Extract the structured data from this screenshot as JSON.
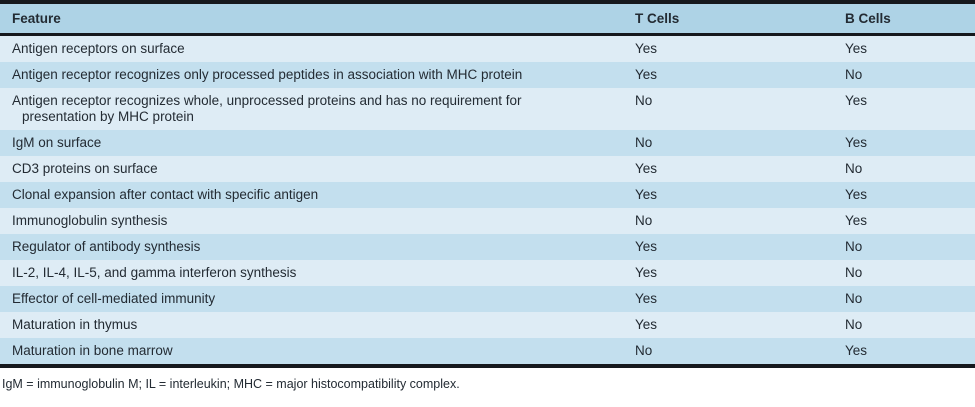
{
  "table": {
    "columns": {
      "feature": "Feature",
      "t_cells": "T Cells",
      "b_cells": "B Cells"
    },
    "rows": [
      {
        "feature": "Antigen receptors on surface",
        "t_cells": "Yes",
        "b_cells": "Yes"
      },
      {
        "feature": "Antigen receptor recognizes only processed peptides in association with MHC protein",
        "t_cells": "Yes",
        "b_cells": "No"
      },
      {
        "feature": "Antigen receptor recognizes whole, unprocessed proteins and has no requirement for presentation by MHC protein",
        "t_cells": "No",
        "b_cells": "Yes"
      },
      {
        "feature": "IgM on surface",
        "t_cells": "No",
        "b_cells": "Yes"
      },
      {
        "feature": "CD3 proteins on surface",
        "t_cells": "Yes",
        "b_cells": "No"
      },
      {
        "feature": "Clonal expansion after contact with specific antigen",
        "t_cells": "Yes",
        "b_cells": "Yes"
      },
      {
        "feature": "Immunoglobulin synthesis",
        "t_cells": "No",
        "b_cells": "Yes"
      },
      {
        "feature": "Regulator of antibody synthesis",
        "t_cells": "Yes",
        "b_cells": "No"
      },
      {
        "feature": "IL-2, IL-4, IL-5, and gamma interferon synthesis",
        "t_cells": "Yes",
        "b_cells": "No"
      },
      {
        "feature": "Effector of cell-mediated immunity",
        "t_cells": "Yes",
        "b_cells": "No"
      },
      {
        "feature": "Maturation in thymus",
        "t_cells": "Yes",
        "b_cells": "No"
      },
      {
        "feature": "Maturation in bone marrow",
        "t_cells": "No",
        "b_cells": "Yes"
      }
    ],
    "footnote": "IgM = immunoglobulin M; IL = interleukin; MHC = major histocompatibility complex."
  },
  "colors": {
    "header_bg": "#aed3e6",
    "row_light": "#deecf5",
    "row_dark": "#c3dfee",
    "border_dark": "#15181d",
    "text": "#232b33"
  }
}
